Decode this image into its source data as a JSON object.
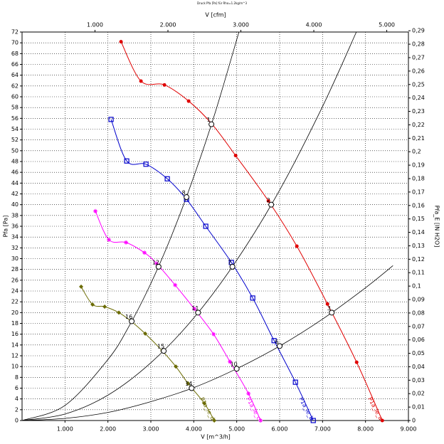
{
  "chart_data": {
    "type": "line",
    "title": "Druck Pfa [Pa] für Rho=1.2kg/m^3",
    "x_label": "V [m^3/h]",
    "x2_label": "V [cfm]",
    "y_label": "Pfa [Pa]",
    "y2_label": "Pfa_E [IN H2O]",
    "xlim": [
      0,
      9000
    ],
    "ylim": [
      0,
      72
    ],
    "x2lim": [
      0,
      5297
    ],
    "y2lim": [
      0,
      0.28905
    ],
    "grid": true,
    "xticks": [
      {
        "value": 1000,
        "label": "1.000"
      },
      {
        "value": 2000,
        "label": "2.000"
      },
      {
        "value": 3000,
        "label": "3.000"
      },
      {
        "value": 4000,
        "label": "4.000"
      },
      {
        "value": 5000,
        "label": "5.000"
      },
      {
        "value": 6000,
        "label": "6.000"
      },
      {
        "value": 7000,
        "label": "7.000"
      },
      {
        "value": 8000,
        "label": "8.000"
      },
      {
        "value": 9000,
        "label": "9.000"
      }
    ],
    "x2ticks": [
      {
        "value": 1000,
        "label": "1.000"
      },
      {
        "value": 2000,
        "label": "2.000"
      },
      {
        "value": 3000,
        "label": "3.000"
      },
      {
        "value": 4000,
        "label": "4.000"
      },
      {
        "value": 5000,
        "label": "5.000"
      }
    ],
    "yticks": [
      0,
      2,
      4,
      6,
      8,
      10,
      12,
      14,
      16,
      18,
      20,
      22,
      24,
      26,
      28,
      30,
      32,
      34,
      36,
      38,
      40,
      42,
      44,
      46,
      48,
      50,
      52,
      54,
      56,
      58,
      60,
      62,
      64,
      66,
      68,
      70,
      72
    ],
    "y2ticks": [
      0,
      {
        "value": 0.01,
        "label": "0,01"
      },
      {
        "value": 0.02,
        "label": "0,02"
      },
      {
        "value": 0.03,
        "label": "0,03"
      },
      {
        "value": 0.04,
        "label": "0,04"
      },
      {
        "value": 0.05,
        "label": "0,05"
      },
      {
        "value": 0.06,
        "label": "0,06"
      },
      {
        "value": 0.07,
        "label": "0,07"
      },
      {
        "value": 0.08,
        "label": "0,08"
      },
      {
        "value": 0.09,
        "label": "0,09"
      },
      {
        "value": 0.1,
        "label": "0,1"
      },
      {
        "value": 0.11,
        "label": "0,11"
      },
      {
        "value": 0.12,
        "label": "0,12"
      },
      {
        "value": 0.13,
        "label": "0,13"
      },
      {
        "value": 0.14,
        "label": "0,14"
      },
      {
        "value": 0.15,
        "label": "0,15"
      },
      {
        "value": 0.16,
        "label": "0,16"
      },
      {
        "value": 0.17,
        "label": "0,17"
      },
      {
        "value": 0.18,
        "label": "0,18"
      },
      {
        "value": 0.19,
        "label": "0,19"
      },
      {
        "value": 0.2,
        "label": "0,2"
      },
      {
        "value": 0.21,
        "label": "0,21"
      },
      {
        "value": 0.22,
        "label": "0,22"
      },
      {
        "value": 0.23,
        "label": "0,23"
      },
      {
        "value": 0.24,
        "label": "0,24"
      },
      {
        "value": 0.25,
        "label": "0,25"
      },
      {
        "value": 0.26,
        "label": "0,26"
      },
      {
        "value": 0.27,
        "label": "0,27"
      },
      {
        "value": 0.28,
        "label": "0,28"
      },
      {
        "value": 0.29,
        "label": "0,29"
      }
    ],
    "series": [
      {
        "name": "P1a_le_a",
        "color": "#e00000",
        "marker": "circle",
        "x": [
          2305,
          2770,
          3317,
          3881,
          4428,
          4975,
          5738,
          6401,
          7114,
          7794,
          8391
        ],
        "values": [
          70.2,
          62.9,
          62.2,
          59.2,
          54.9,
          49.1,
          40.7,
          32.3,
          21.6,
          10.8,
          0
        ]
      },
      {
        "name": "P1a_le_b",
        "color": "#0000cc",
        "marker": "square",
        "x": [
          2073,
          2438,
          2886,
          3383,
          3831,
          4279,
          4876,
          5373,
          5871,
          6368,
          6783
        ],
        "values": [
          55.8,
          48.1,
          47.5,
          44.8,
          41.0,
          36.0,
          29.3,
          22.7,
          14.8,
          7.1,
          0
        ]
      },
      {
        "name": "P1a_le_c",
        "color": "#ff00ff",
        "marker": "star",
        "x": [
          1708,
          2023,
          2421,
          2852,
          3134,
          3566,
          4013,
          4461,
          4842,
          5274,
          5556
        ],
        "values": [
          38.8,
          33.5,
          33.0,
          31.1,
          29.1,
          25.1,
          20.7,
          16.0,
          10.9,
          5.0,
          0
        ]
      },
      {
        "name": "P1a_le_d",
        "color": "#6b6b00",
        "marker": "diamond",
        "x": [
          1376,
          1642,
          1924,
          2255,
          2554,
          2869,
          3267,
          3582,
          3864,
          4245,
          4478
        ],
        "values": [
          24.8,
          21.5,
          21.1,
          20.0,
          18.3,
          16.1,
          12.9,
          10.0,
          6.9,
          3.2,
          0
        ]
      }
    ],
    "system_curves": [
      {
        "color": "#000000",
        "x": [
          0,
          1000,
          2000,
          2500,
          3000,
          3500,
          4000,
          4500,
          5052
        ],
        "values": [
          0,
          2.8,
          11.3,
          17.6,
          25.4,
          34.6,
          45.2,
          57.1,
          72
        ]
      },
      {
        "color": "#000000",
        "x": [
          0,
          1000,
          2000,
          3000,
          4000,
          5000,
          6000,
          7000,
          7787
        ],
        "values": [
          0,
          1.2,
          4.7,
          10.7,
          19.0,
          29.7,
          42.7,
          58.2,
          72
        ]
      },
      {
        "color": "#000000",
        "x": [
          0,
          1000,
          2000,
          3000,
          4000,
          5000,
          6000,
          7000,
          8000,
          8640
        ],
        "values": [
          0,
          0.4,
          1.5,
          3.5,
          6.1,
          9.6,
          13.8,
          18.8,
          24.6,
          28.7
        ]
      }
    ],
    "operating_points": [
      {
        "label": "1",
        "x": 4411,
        "y": 54.9
      },
      {
        "label": "8",
        "x": 3831,
        "y": 41.4
      },
      {
        "label": "12",
        "x": 3180,
        "y": 28.5
      },
      {
        "label": "16",
        "x": 2554,
        "y": 18.4
      },
      {
        "label": "2",
        "x": 5804,
        "y": 40.0
      },
      {
        "label": "7",
        "x": 4900,
        "y": 28.5
      },
      {
        "label": "11",
        "x": 4100,
        "y": 20.0
      },
      {
        "label": "15",
        "x": 3300,
        "y": 12.9
      },
      {
        "label": "3",
        "x": 7214,
        "y": 20.0
      },
      {
        "label": "6",
        "x": 6000,
        "y": 13.8
      },
      {
        "label": "10",
        "x": 5000,
        "y": 9.6
      },
      {
        "label": "14",
        "x": 3950,
        "y": 6.0
      }
    ]
  }
}
